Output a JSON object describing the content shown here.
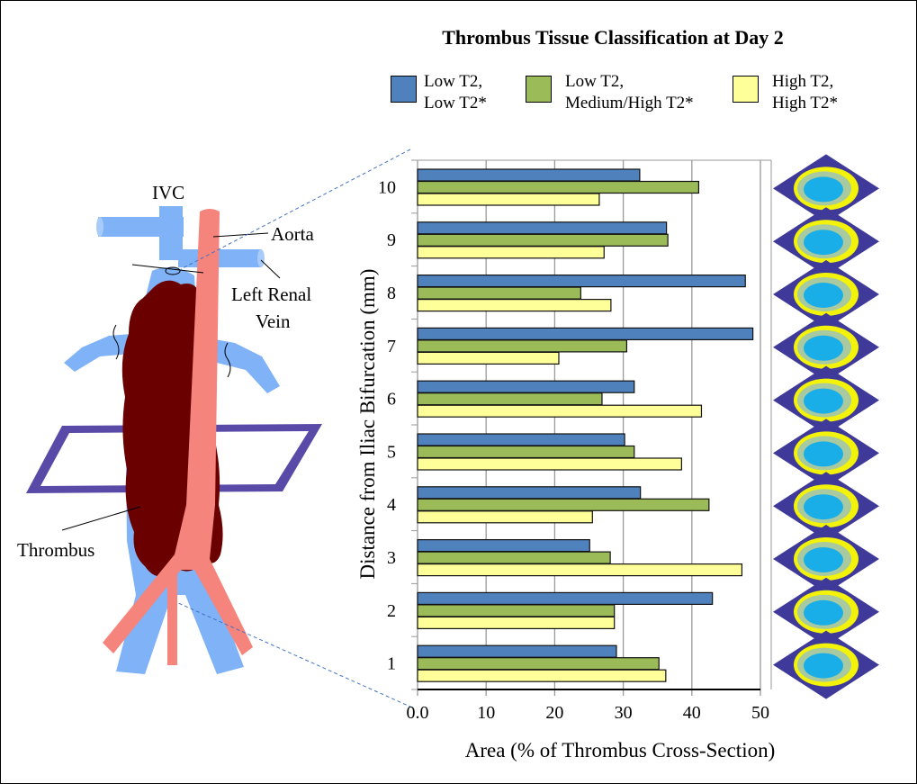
{
  "chart_data": {
    "type": "bar",
    "orientation": "horizontal",
    "title": "Thrombus Tissue Classification at Day 2",
    "xlabel": "Area (% of Thrombus Cross-Section)",
    "ylabel": "Distance from Iliac Bifurcation (mm)",
    "xlim": [
      0,
      50
    ],
    "xticks": [
      "0.0",
      "10",
      "20",
      "30",
      "40",
      "50"
    ],
    "categories": [
      "1",
      "2",
      "3",
      "4",
      "5",
      "6",
      "7",
      "8",
      "9",
      "10"
    ],
    "grid": true,
    "legend_position": "top",
    "series": [
      {
        "name": "Low T2, Low T2*",
        "line1": "Low T2,",
        "line2": "Low T2*",
        "color": "#4f81bd",
        "values": [
          29.0,
          43.0,
          25.1,
          32.5,
          30.2,
          31.6,
          48.9,
          47.8,
          36.3,
          32.4
        ]
      },
      {
        "name": "Low T2, Medium/High T2*",
        "line1": "Low T2,",
        "line2": "Medium/High T2*",
        "color": "#9bbb59",
        "values": [
          35.2,
          28.7,
          28.1,
          42.5,
          31.6,
          26.9,
          30.5,
          23.8,
          36.5,
          41.0
        ]
      },
      {
        "name": "High T2, High T2*",
        "line1": "High T2,",
        "line2": "High T2*",
        "color": "#ffff99",
        "values": [
          36.2,
          28.7,
          47.3,
          25.5,
          38.5,
          41.4,
          20.6,
          28.2,
          27.2,
          26.5
        ]
      }
    ]
  },
  "illustration": {
    "labels": {
      "ivc": "IVC",
      "aorta": "Aorta",
      "renal_line1": "Left Renal",
      "renal_line2": "Vein",
      "thrombus": "Thrombus"
    },
    "colors": {
      "ivc": "#7fb2f7",
      "aorta": "#f4847c",
      "thrombus": "#6a0000",
      "plane": "#5a4aa8"
    }
  }
}
